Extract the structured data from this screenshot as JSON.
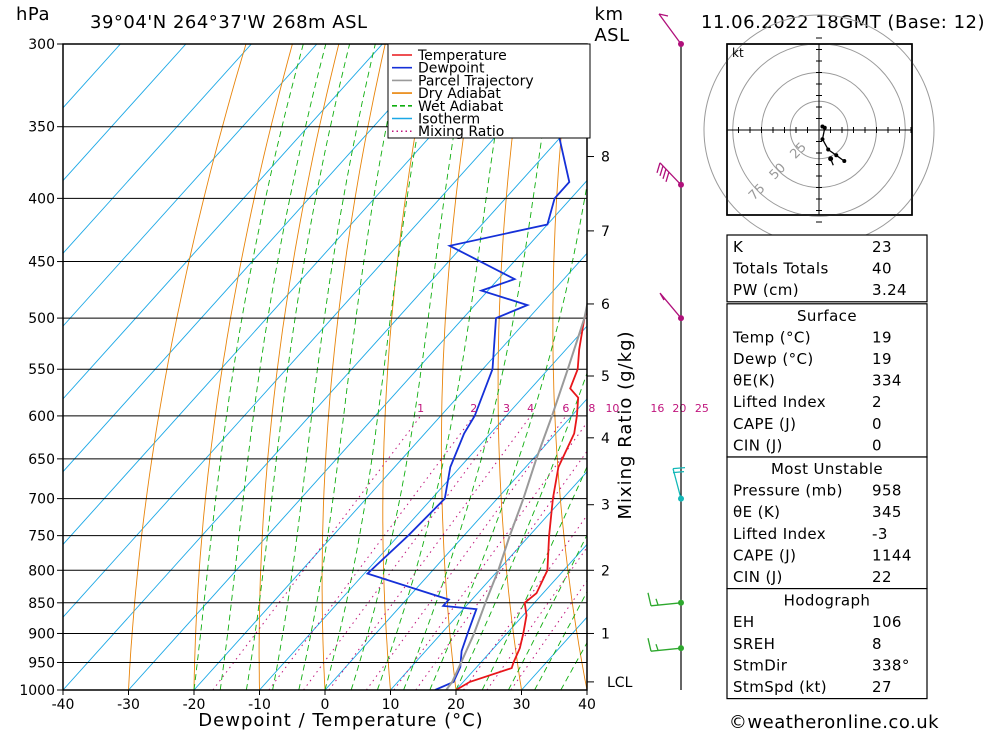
{
  "header": {
    "location": "39°04'N  264°37'W  268m  ASL",
    "date": "11.06.2022  18GMT  (Base: 12)",
    "pressure_unit": "hPa",
    "height_unit_1": "km",
    "height_unit_2": "ASL"
  },
  "footer": {
    "copyright": "©weatheronline.co.uk"
  },
  "chart_data": {
    "type": "line",
    "subtype": "skew-T log-p diagram",
    "xlabel": "Dewpoint / Temperature (°C)",
    "ylabel": "hPa",
    "mixing_ratio_label": "Mixing Ratio (g/kg)",
    "x_ticks": [
      -40,
      -30,
      -20,
      -10,
      0,
      10,
      20,
      30,
      40
    ],
    "xlim": [
      -40,
      40
    ],
    "y_ticks": [
      300,
      350,
      400,
      450,
      500,
      550,
      600,
      650,
      700,
      750,
      800,
      850,
      900,
      950,
      1000
    ],
    "ylim": [
      1000,
      300
    ],
    "y_scale": "log",
    "km_ticks": [
      {
        "label": "1",
        "p": 900
      },
      {
        "label": "2",
        "p": 800
      },
      {
        "label": "3",
        "p": 708
      },
      {
        "label": "4",
        "p": 625
      },
      {
        "label": "5",
        "p": 557
      },
      {
        "label": "6",
        "p": 487
      },
      {
        "label": "7",
        "p": 425
      },
      {
        "label": "8",
        "p": 370
      },
      {
        "label": "LCL",
        "p": 985
      }
    ],
    "mixing_ratio_labels": [
      "1",
      "2",
      "3",
      "4",
      "6",
      "8",
      "10",
      "16",
      "20",
      "25"
    ],
    "mixing_ratio_values": [
      1,
      2,
      3,
      4,
      6,
      8,
      10,
      16,
      20,
      25
    ],
    "legend": {
      "placement": "top-center",
      "items": [
        {
          "name": "Temperature",
          "color": "#e8161a",
          "style": "solid"
        },
        {
          "name": "Dewpoint",
          "color": "#1530d8",
          "style": "solid"
        },
        {
          "name": "Parcel Trajectory",
          "color": "#9a9a9a",
          "style": "solid"
        },
        {
          "name": "Dry Adiabat",
          "color": "#e8840a",
          "style": "solid"
        },
        {
          "name": "Wet Adiabat",
          "color": "#0fae0f",
          "style": "dashed"
        },
        {
          "name": "Isotherm",
          "color": "#1ba8e6",
          "style": "solid"
        },
        {
          "name": "Mixing Ratio",
          "color": "#c0157d",
          "style": "dotted"
        }
      ]
    },
    "series": [
      {
        "name": "Temperature",
        "color": "#e8161a",
        "points": [
          {
            "p": 1000,
            "t": 20
          },
          {
            "p": 985,
            "t": 21
          },
          {
            "p": 960,
            "t": 25.5
          },
          {
            "p": 950,
            "t": 25
          },
          {
            "p": 925,
            "t": 24
          },
          {
            "p": 900,
            "t": 22.5
          },
          {
            "p": 870,
            "t": 20.5
          },
          {
            "p": 850,
            "t": 18.5
          },
          {
            "p": 835,
            "t": 19
          },
          {
            "p": 800,
            "t": 17.5
          },
          {
            "p": 750,
            "t": 13
          },
          {
            "p": 700,
            "t": 8.5
          },
          {
            "p": 660,
            "t": 5
          },
          {
            "p": 620,
            "t": 2.8
          },
          {
            "p": 600,
            "t": 0.8
          },
          {
            "p": 580,
            "t": -1.5
          },
          {
            "p": 570,
            "t": -4
          },
          {
            "p": 550,
            "t": -5.5
          },
          {
            "p": 530,
            "t": -8
          },
          {
            "p": 500,
            "t": -11.5
          },
          {
            "p": 470,
            "t": -14.5
          },
          {
            "p": 450,
            "t": -17
          },
          {
            "p": 420,
            "t": -19.5
          },
          {
            "p": 400,
            "t": -23
          },
          {
            "p": 370,
            "t": -28
          },
          {
            "p": 350,
            "t": -31
          },
          {
            "p": 320,
            "t": -36
          },
          {
            "p": 300,
            "t": -40
          }
        ]
      },
      {
        "name": "Dewpoint",
        "color": "#1530d8",
        "points": [
          {
            "p": 1000,
            "t": 16.8
          },
          {
            "p": 985,
            "t": 18.5
          },
          {
            "p": 958,
            "t": 17.5
          },
          {
            "p": 930,
            "t": 15.5
          },
          {
            "p": 900,
            "t": 14
          },
          {
            "p": 860,
            "t": 12
          },
          {
            "p": 855,
            "t": 6.5
          },
          {
            "p": 845,
            "t": 6.5
          },
          {
            "p": 805,
            "t": -9.5
          },
          {
            "p": 750,
            "t": -8.5
          },
          {
            "p": 700,
            "t": -8
          },
          {
            "p": 660,
            "t": -11.5
          },
          {
            "p": 620,
            "t": -14
          },
          {
            "p": 600,
            "t": -14.8
          },
          {
            "p": 550,
            "t": -18.5
          },
          {
            "p": 500,
            "t": -25
          },
          {
            "p": 488,
            "t": -22
          },
          {
            "p": 475,
            "t": -31
          },
          {
            "p": 465,
            "t": -27.5
          },
          {
            "p": 437,
            "t": -42
          },
          {
            "p": 420,
            "t": -30
          },
          {
            "p": 400,
            "t": -32.5
          },
          {
            "p": 388,
            "t": -32.5
          },
          {
            "p": 350,
            "t": -42
          },
          {
            "p": 300,
            "t": -55
          }
        ]
      },
      {
        "name": "Parcel Trajectory",
        "color": "#9a9a9a",
        "points": [
          {
            "p": 1000,
            "t": 18.5
          },
          {
            "p": 985,
            "t": 18.3
          },
          {
            "p": 950,
            "t": 17
          },
          {
            "p": 900,
            "t": 15
          },
          {
            "p": 850,
            "t": 12.5
          },
          {
            "p": 800,
            "t": 10
          },
          {
            "p": 750,
            "t": 7
          },
          {
            "p": 700,
            "t": 4
          },
          {
            "p": 650,
            "t": 0.5
          },
          {
            "p": 600,
            "t": -3
          },
          {
            "p": 550,
            "t": -7
          },
          {
            "p": 500,
            "t": -11.5
          },
          {
            "p": 450,
            "t": -17.5
          },
          {
            "p": 400,
            "t": -24.5
          },
          {
            "p": 350,
            "t": -33
          },
          {
            "p": 300,
            "t": -43
          }
        ]
      }
    ],
    "wind_barbs": [
      {
        "p": 300,
        "color": "#b0107b"
      },
      {
        "p": 390,
        "color": "#b0107b"
      },
      {
        "p": 500,
        "color": "#b0107b"
      },
      {
        "p": 700,
        "color": "#14b8b8"
      },
      {
        "p": 850,
        "color": "#2da82d"
      },
      {
        "p": 925,
        "color": "#2da82d"
      }
    ],
    "hodograph": {
      "unit": "kt",
      "ring_labels": [
        "25",
        "50",
        "75"
      ],
      "ring_values": [
        25,
        50,
        75
      ],
      "points": [
        {
          "u": 3,
          "v": 3
        },
        {
          "u": 5,
          "v": 2
        },
        {
          "u": 3,
          "v": -8
        },
        {
          "u": 8,
          "v": -17
        },
        {
          "u": 15,
          "v": -22
        },
        {
          "u": 22,
          "v": -27
        }
      ],
      "storm_motion": {
        "dir_deg": 338,
        "speed_kt": 27
      }
    }
  },
  "indices": {
    "table1": [
      {
        "label": "K",
        "value": "23"
      },
      {
        "label": "Totals Totals",
        "value": "40"
      },
      {
        "label": "PW (cm)",
        "value": "3.24"
      }
    ],
    "surface": {
      "title": "Surface",
      "rows": [
        {
          "label": "Temp (°C)",
          "value": "19"
        },
        {
          "label": "Dewp (°C)",
          "value": "19"
        },
        {
          "label": "θE(K)",
          "value": "334"
        },
        {
          "label": "Lifted Index",
          "value": "2"
        },
        {
          "label": "CAPE (J)",
          "value": "0"
        },
        {
          "label": "CIN (J)",
          "value": "0"
        }
      ]
    },
    "most_unstable": {
      "title": "Most Unstable",
      "rows": [
        {
          "label": "Pressure (mb)",
          "value": "958"
        },
        {
          "label": "θE (K)",
          "value": "345"
        },
        {
          "label": "Lifted Index",
          "value": "-3"
        },
        {
          "label": "CAPE (J)",
          "value": "1144"
        },
        {
          "label": "CIN (J)",
          "value": "22"
        }
      ]
    },
    "hodograph_table": {
      "title": "Hodograph",
      "rows": [
        {
          "label": "EH",
          "value": "106"
        },
        {
          "label": "SREH",
          "value": "8"
        },
        {
          "label": "StmDir",
          "value": "338°"
        },
        {
          "label": "StmSpd (kt)",
          "value": "27"
        }
      ]
    }
  }
}
